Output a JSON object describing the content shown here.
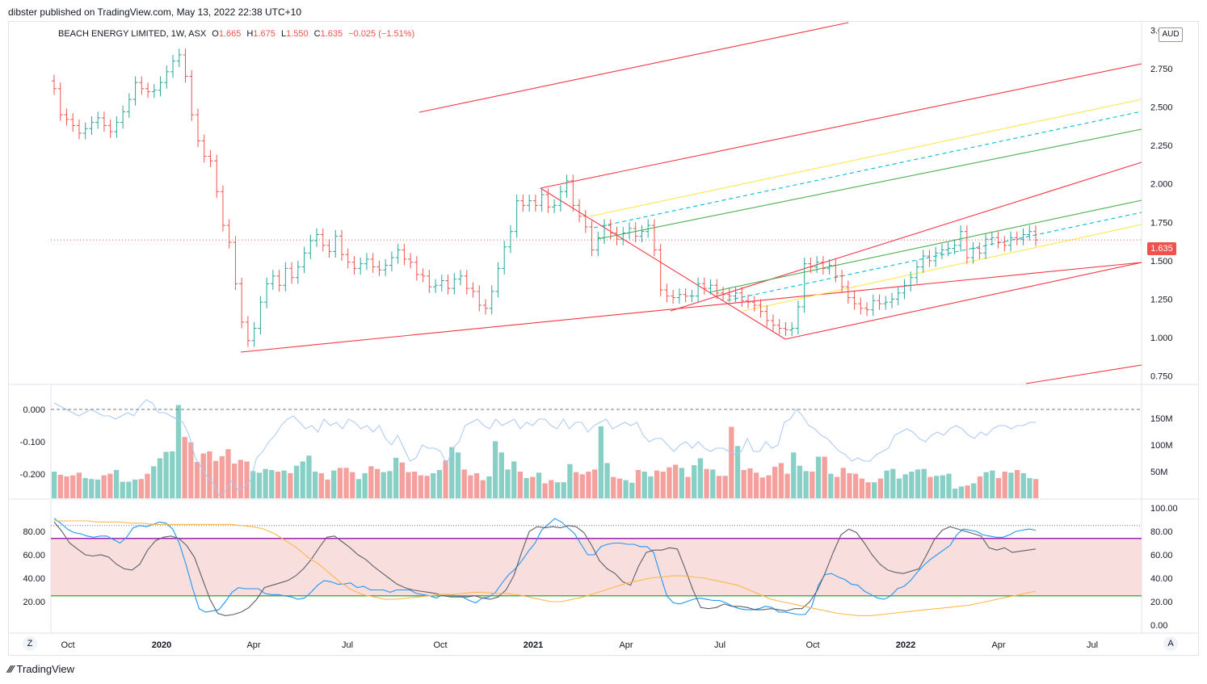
{
  "header": {
    "published": "dibster published on TradingView.com, May 13, 2022 22:38 UTC+10"
  },
  "legend": {
    "symbol": "BEACH ENERGY LIMITED, 1W, ASX",
    "o_label": "O",
    "o": "1.665",
    "h_label": "H",
    "h": "1.675",
    "l_label": "L",
    "l": "1.550",
    "c_label": "C",
    "c": "1.635",
    "change": "−0.025 (−1.51%)"
  },
  "currency": "AUD",
  "last_price": "1.635",
  "corners": {
    "left": "Z",
    "right": "A"
  },
  "footer": {
    "brand": "TradingView",
    "logo": "tradingview-logo-icon"
  },
  "colors": {
    "up": "#26a69a",
    "down": "#ef5350",
    "pitchfork": "#f23645",
    "yellow": "#ffe74c",
    "green": "#4caf50",
    "cyan": "#00bcd4",
    "rsi": "#9c27b0",
    "band": "#f7d6d6"
  },
  "chart_data": [
    {
      "type": "ohlc",
      "panel": "price",
      "interval": "1W",
      "ylim": [
        0.7,
        3.05
      ],
      "y_ticks": [
        "3.000",
        "2.750",
        "2.500",
        "2.250",
        "2.000",
        "1.750",
        "1.500",
        "1.250",
        "1.000",
        "0.750"
      ],
      "x_ticks": [
        "Oct",
        "2020",
        "Apr",
        "Jul",
        "Oct",
        "2021",
        "Apr",
        "Jul",
        "Oct",
        "2022",
        "Apr",
        "Jul"
      ],
      "closes": [
        2.62,
        2.45,
        2.42,
        2.38,
        2.33,
        2.36,
        2.4,
        2.43,
        2.38,
        2.34,
        2.4,
        2.47,
        2.55,
        2.66,
        2.62,
        2.6,
        2.61,
        2.66,
        2.73,
        2.8,
        2.84,
        2.7,
        2.45,
        2.28,
        2.18,
        2.15,
        1.95,
        1.73,
        1.62,
        1.35,
        1.1,
        0.98,
        1.06,
        1.23,
        1.35,
        1.4,
        1.34,
        1.45,
        1.39,
        1.46,
        1.55,
        1.63,
        1.67,
        1.6,
        1.56,
        1.66,
        1.54,
        1.49,
        1.45,
        1.48,
        1.51,
        1.46,
        1.44,
        1.47,
        1.52,
        1.57,
        1.51,
        1.49,
        1.41,
        1.4,
        1.33,
        1.34,
        1.37,
        1.32,
        1.38,
        1.4,
        1.32,
        1.3,
        1.21,
        1.19,
        1.3,
        1.45,
        1.59,
        1.69,
        1.89,
        1.86,
        1.89,
        1.86,
        1.93,
        1.85,
        1.86,
        1.95,
        2.02,
        1.86,
        1.79,
        1.72,
        1.57,
        1.65,
        1.73,
        1.68,
        1.64,
        1.68,
        1.71,
        1.66,
        1.69,
        1.73,
        1.57,
        1.31,
        1.27,
        1.26,
        1.28,
        1.27,
        1.27,
        1.35,
        1.32,
        1.34,
        1.29,
        1.28,
        1.27,
        1.29,
        1.24,
        1.23,
        1.21,
        1.17,
        1.11,
        1.08,
        1.06,
        1.05,
        1.06,
        1.2,
        1.48,
        1.46,
        1.49,
        1.45,
        1.47,
        1.4,
        1.33,
        1.26,
        1.22,
        1.19,
        1.18,
        1.24,
        1.22,
        1.23,
        1.25,
        1.29,
        1.34,
        1.39,
        1.46,
        1.53,
        1.5,
        1.55,
        1.57,
        1.58,
        1.6,
        1.69,
        1.52,
        1.58,
        1.55,
        1.64,
        1.65,
        1.62,
        1.6,
        1.65,
        1.64,
        1.67,
        1.69,
        1.635
      ]
    },
    {
      "type": "bar+line",
      "panel": "volume_cmf",
      "left_ticks": [
        "0.000",
        "-0.100",
        "-0.200"
      ],
      "right_ticks": [
        "150M",
        "100M",
        "50M"
      ],
      "volume_m": [
        50,
        44,
        41,
        43,
        48,
        38,
        36,
        35,
        43,
        46,
        53,
        31,
        31,
        35,
        36,
        46,
        60,
        75,
        87,
        88,
        175,
        115,
        105,
        68,
        84,
        88,
        70,
        79,
        92,
        65,
        72,
        69,
        51,
        48,
        55,
        53,
        50,
        52,
        47,
        61,
        69,
        80,
        50,
        47,
        35,
        52,
        57,
        57,
        49,
        36,
        47,
        60,
        55,
        49,
        51,
        76,
        67,
        49,
        50,
        43,
        42,
        47,
        53,
        71,
        96,
        86,
        54,
        43,
        47,
        34,
        41,
        107,
        86,
        54,
        69,
        50,
        38,
        40,
        48,
        28,
        34,
        30,
        30,
        64,
        49,
        45,
        50,
        54,
        135,
        66,
        40,
        37,
        34,
        29,
        53,
        50,
        41,
        52,
        50,
        58,
        63,
        57,
        40,
        62,
        75,
        55,
        54,
        42,
        42,
        134,
        98,
        53,
        56,
        48,
        39,
        43,
        59,
        66,
        46,
        86,
        61,
        51,
        50,
        78,
        78,
        46,
        40,
        57,
        47,
        46,
        37,
        30,
        30,
        37,
        52,
        55,
        37,
        45,
        50,
        54,
        55,
        40,
        42,
        43,
        46,
        18,
        22,
        24,
        28,
        41,
        49,
        52,
        38,
        50,
        48,
        53,
        47,
        38,
        36
      ],
      "cmf": [
        0.02,
        0.01,
        0.0,
        -0.01,
        -0.02,
        -0.01,
        0.0,
        -0.01,
        -0.02,
        -0.02,
        -0.03,
        -0.02,
        -0.01,
        -0.02,
        0.01,
        0.03,
        0.02,
        -0.01,
        -0.01,
        -0.02,
        -0.03,
        -0.04,
        -0.08,
        -0.15,
        -0.18,
        -0.21,
        -0.23,
        -0.27,
        -0.25,
        -0.22,
        -0.25,
        -0.24,
        -0.22,
        -0.15,
        -0.13,
        -0.1,
        -0.08,
        -0.05,
        -0.03,
        -0.02,
        -0.04,
        -0.06,
        -0.05,
        -0.07,
        -0.03,
        -0.05,
        -0.04,
        -0.06,
        -0.03,
        -0.04,
        -0.06,
        -0.05,
        -0.07,
        -0.05,
        -0.09,
        -0.11,
        -0.08,
        -0.12,
        -0.16,
        -0.15,
        -0.11,
        -0.12,
        -0.12,
        -0.13,
        -0.17,
        -0.12,
        -0.1,
        -0.05,
        -0.04,
        -0.03,
        -0.05,
        -0.06,
        -0.03,
        -0.05,
        -0.04,
        -0.03,
        -0.06,
        -0.04,
        -0.05,
        -0.03,
        -0.03,
        -0.05,
        -0.06,
        -0.03,
        -0.06,
        -0.04,
        -0.04,
        -0.07,
        -0.05,
        -0.04,
        -0.03,
        -0.06,
        -0.05,
        -0.04,
        -0.05,
        -0.04,
        -0.08,
        -0.1,
        -0.09,
        -0.09,
        -0.11,
        -0.13,
        -0.11,
        -0.1,
        -0.12,
        -0.1,
        -0.12,
        -0.13,
        -0.12,
        -0.12,
        -0.13,
        -0.14,
        -0.13,
        -0.09,
        -0.13,
        -0.13,
        -0.1,
        -0.12,
        -0.11,
        -0.04,
        -0.03,
        0.0,
        -0.02,
        -0.05,
        -0.06,
        -0.08,
        -0.09,
        -0.11,
        -0.13,
        -0.14,
        -0.16,
        -0.15,
        -0.16,
        -0.16,
        -0.14,
        -0.13,
        -0.12,
        -0.08,
        -0.07,
        -0.06,
        -0.07,
        -0.09,
        -0.1,
        -0.08,
        -0.07,
        -0.08,
        -0.06,
        -0.05,
        -0.06,
        -0.08,
        -0.09,
        -0.07,
        -0.08,
        -0.06,
        -0.05,
        -0.05,
        -0.06,
        -0.05,
        -0.05,
        -0.04,
        -0.04
      ]
    },
    {
      "type": "line",
      "panel": "oscillator",
      "ylim": [
        0,
        100
      ],
      "left_ticks": [
        "80.00",
        "60.00",
        "40.00",
        "20.00"
      ],
      "right_ticks": [
        "100.00",
        "80.00",
        "60.00",
        "40.00",
        "20.00",
        "0.00"
      ],
      "levels": [
        85,
        74,
        25
      ],
      "band": [
        25,
        74
      ],
      "series": [
        {
          "color": "#2196f3",
          "values": [
            91,
            87,
            82,
            79,
            78,
            76,
            75,
            76,
            76,
            73,
            70,
            75,
            83,
            85,
            84,
            86,
            88,
            87,
            82,
            70,
            52,
            32,
            14,
            11,
            12,
            13,
            20,
            28,
            32,
            31,
            31,
            31,
            27,
            26,
            26,
            25,
            24,
            22,
            23,
            28,
            34,
            38,
            37,
            35,
            35,
            36,
            32,
            33,
            30,
            30,
            30,
            28,
            30,
            30,
            30,
            27,
            26,
            25,
            23,
            26,
            26,
            25,
            24,
            21,
            19,
            23,
            24,
            28,
            36,
            43,
            48,
            55,
            63,
            70,
            81,
            86,
            91,
            88,
            83,
            78,
            69,
            60,
            60,
            67,
            69,
            70,
            70,
            69,
            69,
            67,
            67,
            62,
            43,
            25,
            19,
            18,
            20,
            22,
            23,
            22,
            21,
            21,
            19,
            16,
            14,
            13,
            13,
            14,
            16,
            15,
            11,
            11,
            10,
            9,
            9,
            16,
            34,
            43,
            44,
            41,
            39,
            35,
            34,
            29,
            26,
            23,
            22,
            25,
            31,
            33,
            38,
            45,
            51,
            56,
            60,
            64,
            68,
            77,
            82,
            81,
            80,
            77,
            76,
            75,
            75,
            77,
            80,
            81,
            82,
            81
          ]
        },
        {
          "color": "#5d606b",
          "values": [
            88,
            80,
            70,
            65,
            60,
            59,
            60,
            58,
            52,
            48,
            47,
            52,
            64,
            72,
            75,
            76,
            74,
            68,
            58,
            40,
            22,
            10,
            8,
            9,
            11,
            15,
            22,
            32,
            34,
            36,
            38,
            42,
            48,
            56,
            66,
            75,
            76,
            71,
            66,
            60,
            56,
            50,
            45,
            40,
            35,
            32,
            30,
            29,
            28,
            27,
            25,
            24,
            24,
            24,
            25,
            23,
            22,
            24,
            30,
            42,
            62,
            80,
            84,
            83,
            84,
            83,
            85,
            84,
            79,
            68,
            55,
            48,
            44,
            37,
            34,
            50,
            62,
            64,
            64,
            66,
            65,
            48,
            30,
            15,
            14,
            15,
            18,
            16,
            16,
            15,
            13,
            13,
            14,
            13,
            12,
            14,
            14,
            20,
            30,
            45,
            62,
            77,
            82,
            79,
            70,
            60,
            52,
            47,
            45,
            44,
            46,
            48,
            60,
            73,
            81,
            84,
            82,
            80,
            78,
            76,
            66,
            64,
            66,
            62,
            63,
            64,
            65
          ]
        },
        {
          "color": "#ffb74d",
          "values": [
            89,
            89,
            89,
            89,
            88,
            88,
            88,
            87,
            87,
            86,
            86,
            86,
            86,
            86,
            86,
            86,
            86,
            85,
            84,
            82,
            78,
            72,
            66,
            58,
            52,
            44,
            36,
            30,
            26,
            24,
            22,
            22,
            23,
            24,
            25,
            26,
            26,
            27,
            28,
            28,
            27,
            27,
            26,
            24,
            22,
            20,
            20,
            22,
            24,
            27,
            30,
            33,
            36,
            38,
            40,
            41,
            42,
            42,
            41,
            40,
            38,
            36,
            34,
            30,
            26,
            22,
            20,
            18,
            16,
            14,
            12,
            10,
            9,
            8,
            8,
            9,
            10,
            11,
            12,
            13,
            14,
            15,
            16,
            17,
            19,
            21,
            23,
            25,
            27,
            29
          ]
        }
      ]
    }
  ]
}
